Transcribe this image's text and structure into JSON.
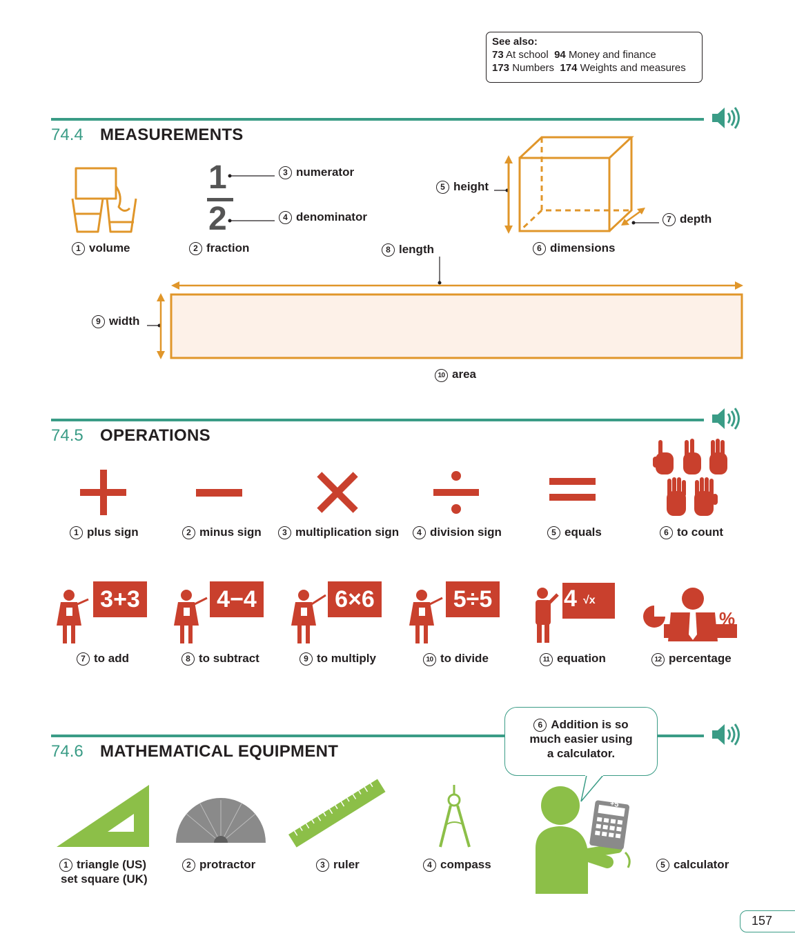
{
  "see_also": {
    "heading": "See also:",
    "refs": [
      {
        "num": "73",
        "text": "At school"
      },
      {
        "num": "94",
        "text": "Money and finance"
      },
      {
        "num": "173",
        "text": "Numbers"
      },
      {
        "num": "174",
        "text": "Weights and measures"
      }
    ]
  },
  "sections": [
    {
      "number": "74.4",
      "title": "MEASUREMENTS"
    },
    {
      "number": "74.5",
      "title": "OPERATIONS"
    },
    {
      "number": "74.6",
      "title": "MATHEMATICAL EQUIPMENT"
    }
  ],
  "measurements": {
    "fraction_top": "1",
    "fraction_bottom": "2",
    "labels": [
      {
        "n": "1",
        "text": "volume"
      },
      {
        "n": "2",
        "text": "fraction"
      },
      {
        "n": "3",
        "text": "numerator"
      },
      {
        "n": "4",
        "text": "denominator"
      },
      {
        "n": "5",
        "text": "height"
      },
      {
        "n": "6",
        "text": "dimensions"
      },
      {
        "n": "7",
        "text": "depth"
      },
      {
        "n": "8",
        "text": "length"
      },
      {
        "n": "9",
        "text": "width"
      },
      {
        "n": "10",
        "text": "area"
      }
    ]
  },
  "operations": {
    "labels": [
      {
        "n": "1",
        "text": "plus sign"
      },
      {
        "n": "2",
        "text": "minus sign"
      },
      {
        "n": "3",
        "text": "multiplication sign"
      },
      {
        "n": "4",
        "text": "division sign"
      },
      {
        "n": "5",
        "text": "equals"
      },
      {
        "n": "6",
        "text": "to count"
      },
      {
        "n": "7",
        "text": "to add"
      },
      {
        "n": "8",
        "text": "to subtract"
      },
      {
        "n": "9",
        "text": "to multiply"
      },
      {
        "n": "10",
        "text": "to divide"
      },
      {
        "n": "11",
        "text": "equation"
      },
      {
        "n": "12",
        "text": "percentage"
      }
    ],
    "boards": [
      "3+3",
      "4−4",
      "6×6",
      "5÷5",
      "4",
      "√x"
    ],
    "percent_symbol": "%"
  },
  "equipment": {
    "labels": [
      {
        "n": "1",
        "text": "triangle (US)",
        "text2": "set square (UK)"
      },
      {
        "n": "2",
        "text": "protractor"
      },
      {
        "n": "3",
        "text": "ruler"
      },
      {
        "n": "4",
        "text": "compass"
      },
      {
        "n": "5",
        "text": "calculator"
      }
    ],
    "speech": {
      "n": "6",
      "line1": "Addition is so",
      "line2": "much easier using",
      "line3": "a calculator."
    },
    "calc_key": "+5"
  },
  "page_number": "157",
  "colors": {
    "teal": "#3a9c86",
    "orange": "#e0962a",
    "red": "#c9402d",
    "green": "#8cbf48",
    "gray": "#8a8a8a",
    "area_fill": "#fdf1e8"
  }
}
